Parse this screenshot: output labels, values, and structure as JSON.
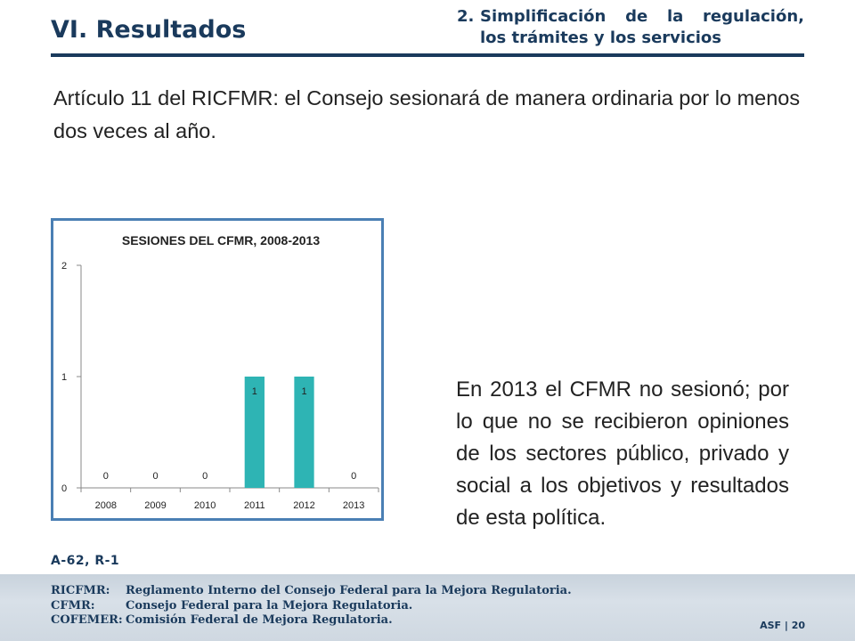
{
  "header": {
    "section": "VI. Resultados",
    "sub_number": "2.",
    "sub_line1": "Simplificación de la regulación,",
    "sub_line2": "los trámites y los servicios"
  },
  "intro": "Artículo 11 del RICFMR: el Consejo sesionará de manera ordinaria por lo menos dos veces al año.",
  "side_text": "En 2013 el CFMR no sesionó; por lo que no se recibieron opiniones de los sectores público, privado y social a los objetivos y resultados de esta política.",
  "reference": "A-62, R-1",
  "glossary": [
    {
      "key": "RICFMR:",
      "value": "Reglamento Interno del Consejo Federal para la Mejora Regulatoria."
    },
    {
      "key": "CFMR:",
      "value": "Consejo Federal para la Mejora Regulatoria."
    },
    {
      "key": "COFEMER:",
      "value": "Comisión Federal de Mejora Regulatoria."
    }
  ],
  "page_tag": "ASF | 20",
  "colors": {
    "bar": "#2eb4b4",
    "frame": "#4a7fb4",
    "navy": "#1a3a5c"
  },
  "chart_data": {
    "type": "bar",
    "title": "SESIONES DEL CFMR, 2008-2013",
    "categories": [
      "2008",
      "2009",
      "2010",
      "2011",
      "2012",
      "2013"
    ],
    "values": [
      0,
      0,
      0,
      1,
      1,
      0
    ],
    "data_labels": [
      "0",
      "0",
      "0",
      "1",
      "1",
      "0"
    ],
    "ylim": [
      0,
      2
    ],
    "yticks": [
      0,
      1,
      2
    ],
    "xlabel": "",
    "ylabel": "",
    "grid": false,
    "legend": "none"
  }
}
